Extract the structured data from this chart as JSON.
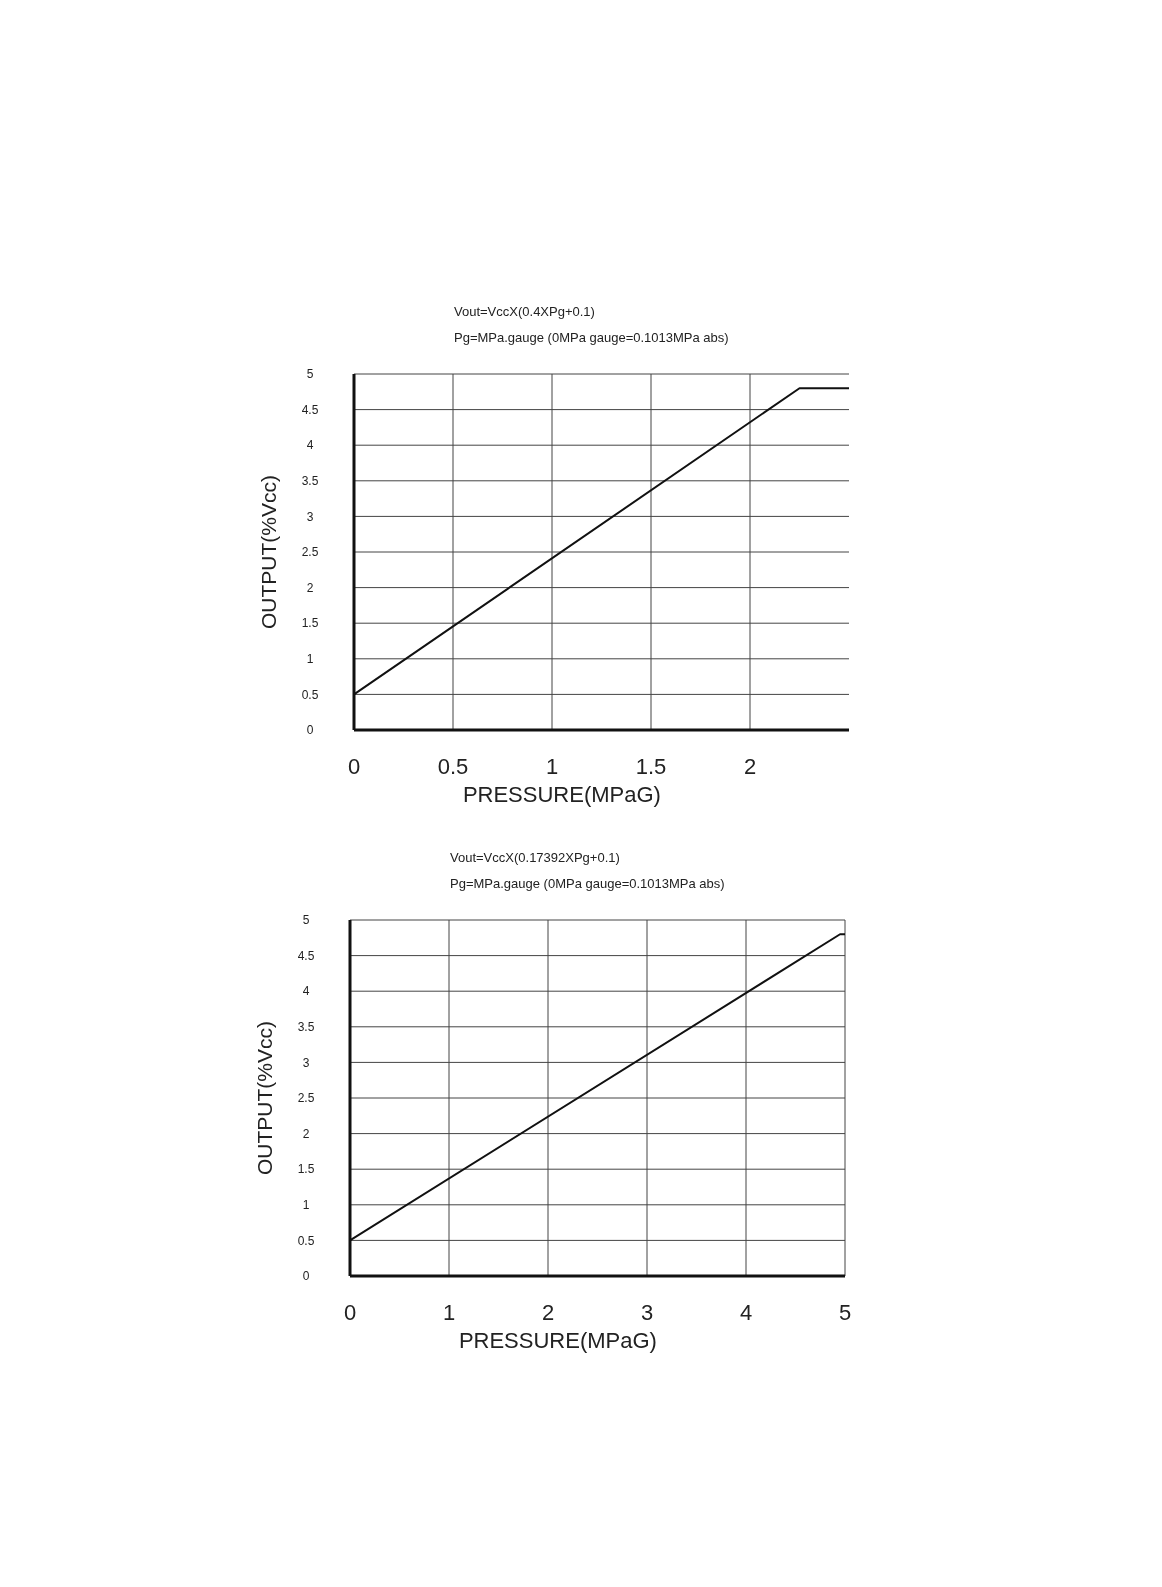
{
  "chart_data": [
    {
      "type": "line",
      "title": "Vout=VccX(0.4XPg+0.1)",
      "subtitle": "Pg=MPa.gauge (0MPa gauge=0.1013MPa abs)",
      "xlabel": "PRESSURE(MPaG)",
      "ylabel": "OUTPUT(%Vcc)",
      "x": [
        0,
        2.25,
        2.5
      ],
      "series": [
        {
          "color": "#111111",
          "values": [
            0.5,
            4.8,
            4.8
          ]
        }
      ],
      "xlim": [
        0,
        2.5
      ],
      "xticks": [
        0,
        0.5,
        1,
        1.5,
        2
      ],
      "ylim": [
        0,
        5
      ],
      "yticks": [
        0,
        0.5,
        1,
        1.5,
        2,
        2.5,
        3,
        3.5,
        4,
        4.5,
        5
      ],
      "grid": true,
      "marker": "none",
      "line_style": "solid"
    },
    {
      "type": "line",
      "title": "Vout=VccX(0.17392XPg+0.1)",
      "subtitle": "Pg=MPa.gauge (0MPa gauge=0.1013MPa abs)",
      "xlabel": "PRESSURE(MPaG)",
      "ylabel": "OUTPUT(%Vcc)",
      "x": [
        0,
        4.95,
        5
      ],
      "series": [
        {
          "color": "#111111",
          "values": [
            0.5,
            4.8,
            4.8
          ]
        }
      ],
      "xlim": [
        0,
        5
      ],
      "xticks": [
        0,
        1,
        2,
        3,
        4,
        5
      ],
      "ylim": [
        0,
        5
      ],
      "yticks": [
        0,
        0.5,
        1,
        1.5,
        2,
        2.5,
        3,
        3.5,
        4,
        4.5,
        5
      ],
      "grid": true,
      "marker": "none",
      "line_style": "solid"
    }
  ]
}
